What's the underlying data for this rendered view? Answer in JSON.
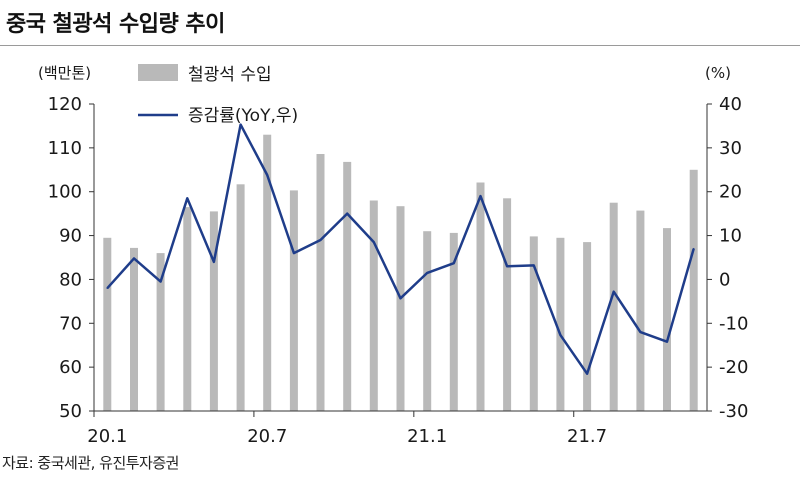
{
  "title": "중국 철광석 수입량 추이",
  "source": "자료: 중국세관, 유진투자증권",
  "chart_data": {
    "type": "bar+line",
    "categories": [
      "20.1",
      "20.2",
      "20.3",
      "20.4",
      "20.5",
      "20.6",
      "20.7",
      "20.8",
      "20.9",
      "20.10",
      "20.11",
      "20.12",
      "21.1",
      "21.2",
      "21.3",
      "21.4",
      "21.5",
      "21.6",
      "21.7",
      "21.8",
      "21.9",
      "21.10",
      "21.11"
    ],
    "x_tick_labels": [
      "20.1",
      "20.7",
      "21.1",
      "21.7"
    ],
    "series": [
      {
        "name": "철광석 수입",
        "type": "bar",
        "axis": "left",
        "color": "#b9b9b9",
        "values": [
          89.5,
          87.2,
          86.0,
          96.5,
          95.5,
          101.7,
          113.0,
          100.3,
          108.6,
          106.8,
          98.0,
          96.7,
          91.0,
          90.6,
          102.1,
          98.5,
          89.8,
          89.5,
          88.5,
          97.5,
          95.7,
          91.7,
          105.0
        ]
      },
      {
        "name": "증감률(YoY,우)",
        "type": "line",
        "axis": "right",
        "color": "#1f3d8a",
        "values": [
          -2.0,
          4.8,
          -0.5,
          18.5,
          4.0,
          35.3,
          23.8,
          6.0,
          9.0,
          15.0,
          8.5,
          -4.3,
          1.5,
          3.7,
          19.0,
          3.0,
          3.2,
          -12.7,
          -21.5,
          -2.8,
          -12.0,
          -14.2,
          7.0
        ]
      }
    ],
    "y_left": {
      "unit_label": "(백만톤)",
      "range": [
        50,
        120
      ],
      "ticks": [
        50,
        60,
        70,
        80,
        90,
        100,
        110,
        120
      ]
    },
    "y_right": {
      "unit_label": "(%)",
      "range": [
        -30,
        40
      ],
      "ticks": [
        -30,
        -20,
        -10,
        0,
        10,
        20,
        30,
        40
      ]
    },
    "grid": false,
    "legend_position": "top-center"
  }
}
